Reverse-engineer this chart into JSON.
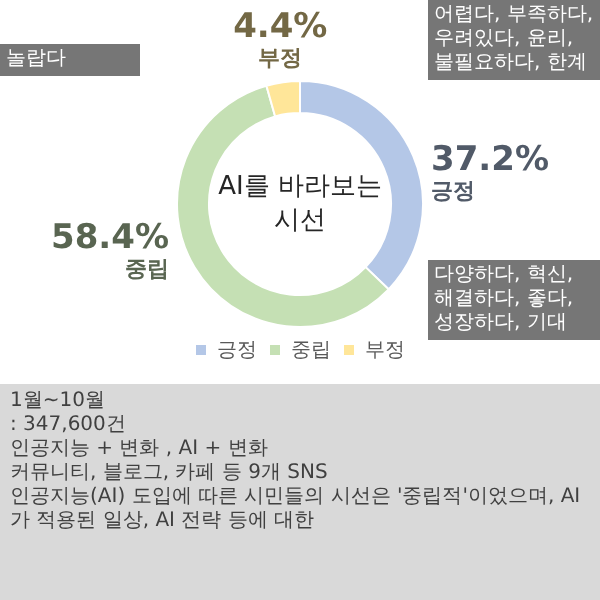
{
  "chart_data": {
    "type": "donut",
    "title": "AI를 바라보는 시선",
    "categories": [
      "긍정",
      "중립",
      "부정"
    ],
    "values": [
      37.2,
      58.4,
      4.4
    ],
    "colors": [
      "#b4c7e7",
      "#c5e0b4",
      "#ffe699"
    ],
    "value_labels": [
      "37.2%",
      "58.4%",
      "4.4%"
    ],
    "legend": "bottom",
    "annotations": [
      "어렵다, 부족하다, 우려있다, 윤리, 불필요하다, 한계",
      "놀랍다",
      "다양하다, 혁신, 해결하다, 좋다, 성장하다, 기대",
      "1월~10월",
      ": 347,600건",
      "인공지능 + 변화 , AI + 변화",
      "커뮤니티, 블로그, 카페 등 9개 SNS",
      "인공지능(AI) 도입에 따른 시민들의 시선은 '중립적'이었으며, AI가 적용된 일상, AI 전략 등에 대한"
    ]
  }
}
